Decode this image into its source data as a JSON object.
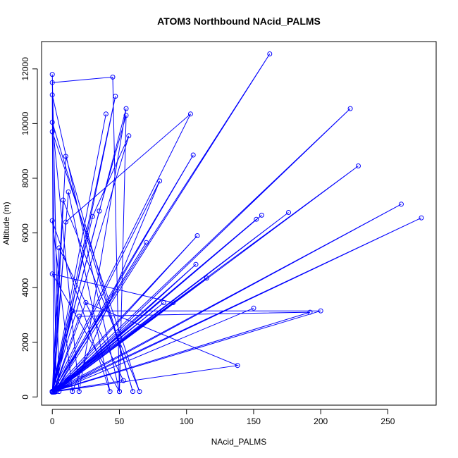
{
  "chart_data": {
    "type": "scatter",
    "title": "ATOM3 Northbound NAcid_PALMS",
    "xlabel": "NAcid_PALMS",
    "ylabel": "Altitude (m)",
    "xlim": [
      -8,
      286
    ],
    "ylim": [
      -300,
      13000
    ],
    "x_ticks": [
      0,
      50,
      100,
      150,
      200,
      250
    ],
    "y_ticks": [
      0,
      2000,
      4000,
      6000,
      8000,
      10000,
      12000
    ],
    "color": "#0000ff",
    "marker": "open-circle",
    "connected": true,
    "grid": false,
    "x": [
      0,
      5,
      0,
      45,
      50,
      0,
      1,
      10,
      60,
      0,
      20,
      55,
      0,
      8,
      65,
      0,
      3,
      107,
      0,
      12,
      43,
      0,
      15,
      80,
      1,
      25,
      138,
      0,
      5,
      53,
      0,
      40,
      0,
      30,
      57,
      0,
      70,
      0,
      162,
      2,
      150,
      1,
      10,
      103,
      0,
      35,
      55,
      50,
      0,
      90,
      0,
      15,
      200,
      1,
      20,
      192,
      0,
      228,
      2,
      222,
      0,
      260,
      2,
      275,
      0,
      176,
      1,
      156,
      0,
      152,
      0,
      105,
      2,
      83,
      0,
      47,
      2,
      115,
      2,
      108,
      0
    ],
    "y": [
      11800,
      200,
      11500,
      11700,
      200,
      11050,
      200,
      8800,
      200,
      10050,
      200,
      10550,
      180,
      7200,
      200,
      9700,
      200,
      4850,
      180,
      7500,
      200,
      6450,
      200,
      7900,
      180,
      3450,
      1150,
      180,
      5450,
      600,
      200,
      10350,
      200,
      6600,
      9550,
      180,
      5650,
      200,
      12550,
      200,
      3250,
      180,
      6400,
      10350,
      200,
      6800,
      10300,
      200,
      4500,
      3450,
      180,
      3150,
      3150,
      200,
      2950,
      3100,
      200,
      8450,
      180,
      10550,
      200,
      7050,
      200,
      6550,
      200,
      6750,
      180,
      6650,
      200,
      6500,
      180,
      8850,
      200,
      3450,
      180,
      11000,
      200,
      4350,
      200,
      5900,
      200
    ]
  }
}
